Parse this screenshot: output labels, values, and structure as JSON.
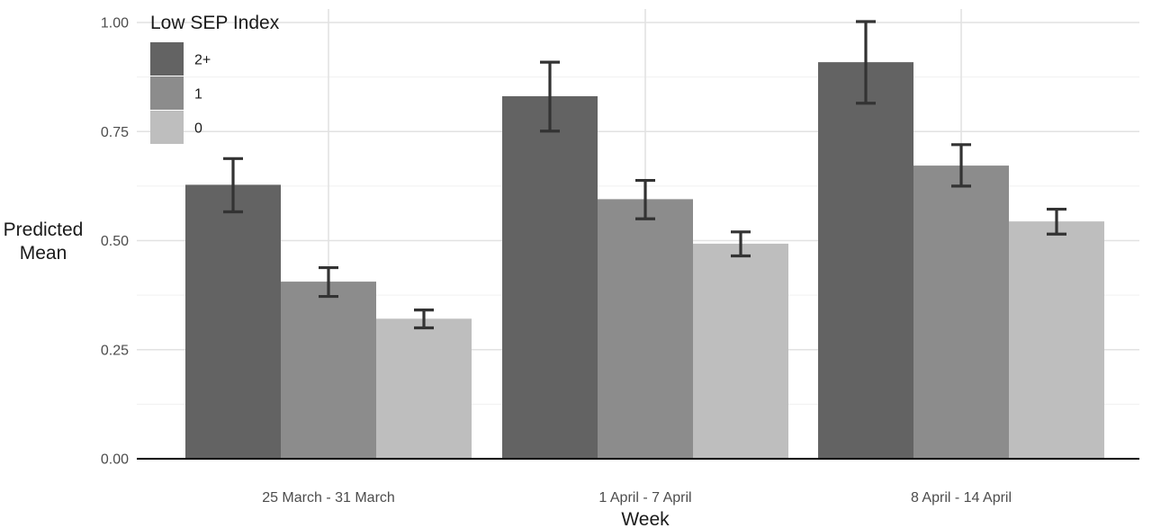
{
  "chart_data": {
    "type": "bar",
    "xlabel": "Week",
    "ylabel": "Predicted Mean",
    "ylim": [
      0,
      1.0
    ],
    "yticks": [
      "0.00",
      "0.25",
      "0.50",
      "0.75",
      "1.00"
    ],
    "ytick_values": [
      0,
      0.25,
      0.5,
      0.75,
      1.0
    ],
    "categories": [
      "25 March - 31 March",
      "1 April - 7 April",
      "8 April - 14 April"
    ],
    "legend": {
      "title": "Low SEP Index",
      "placement": "top-left"
    },
    "series": [
      {
        "name": "2+",
        "color": "#636363",
        "values": [
          0.628,
          0.831,
          0.909
        ],
        "err_low": [
          0.566,
          0.751,
          0.815
        ],
        "err_high": [
          0.688,
          0.909,
          1.002
        ]
      },
      {
        "name": "1",
        "color": "#8c8c8c",
        "values": [
          0.406,
          0.595,
          0.672
        ],
        "err_low": [
          0.372,
          0.55,
          0.625
        ],
        "err_high": [
          0.438,
          0.638,
          0.72
        ]
      },
      {
        "name": "0",
        "color": "#bebebe",
        "values": [
          0.321,
          0.493,
          0.544
        ],
        "err_low": [
          0.3,
          0.465,
          0.515
        ],
        "err_high": [
          0.341,
          0.52,
          0.572
        ]
      }
    ],
    "grid": true
  }
}
